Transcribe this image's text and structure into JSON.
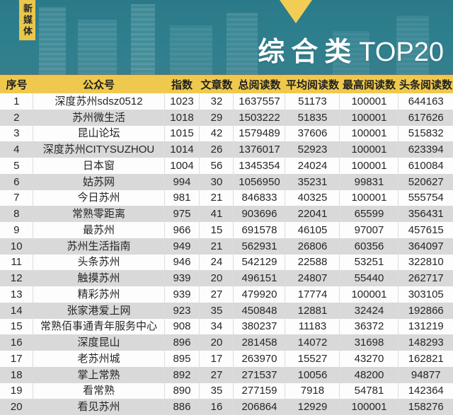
{
  "hero": {
    "badge": "新媒体",
    "title_cn": "综合类",
    "title_suffix": "TOP20"
  },
  "colors": {
    "teal": "#2e7f8e",
    "yellow": "#efc94d",
    "ribbon_yellow": "#e9c74b",
    "row_gray": "#d9d9d9",
    "row_white": "#fdfdfd",
    "text_dark": "#262626",
    "title_white": "#ffffff"
  },
  "chart_data": {
    "type": "table",
    "title": "综合类 TOP20",
    "badge": "新媒体",
    "columns": [
      "序号",
      "公众号",
      "指数",
      "文章数",
      "总阅读数",
      "平均阅读数",
      "最高阅读数",
      "头条阅读数"
    ],
    "rows": [
      [
        1,
        "深度苏州sdsz0512",
        1023,
        32,
        1637557,
        51173,
        100001,
        644163
      ],
      [
        2,
        "苏州微生活",
        1018,
        29,
        1503222,
        51835,
        100001,
        617626
      ],
      [
        3,
        "昆山论坛",
        1015,
        42,
        1579489,
        37606,
        100001,
        515832
      ],
      [
        4,
        "深度苏州CITYSUZHOU",
        1014,
        26,
        1376017,
        52923,
        100001,
        623394
      ],
      [
        5,
        "日本窗",
        1004,
        56,
        1345354,
        24024,
        100001,
        610084
      ],
      [
        6,
        "姑苏网",
        994,
        30,
        1056950,
        35231,
        99831,
        520627
      ],
      [
        7,
        "今日苏州",
        981,
        21,
        846833,
        40325,
        100001,
        555754
      ],
      [
        8,
        "常熟零距离",
        975,
        41,
        903696,
        22041,
        65599,
        356431
      ],
      [
        9,
        "最苏州",
        966,
        15,
        691578,
        46105,
        97007,
        457615
      ],
      [
        10,
        "苏州生活指南",
        949,
        21,
        562931,
        26806,
        60356,
        364097
      ],
      [
        11,
        "头条苏州",
        946,
        24,
        542129,
        22588,
        53251,
        322810
      ],
      [
        12,
        "触摸苏州",
        939,
        20,
        496151,
        24807,
        55440,
        262717
      ],
      [
        13,
        "精彩苏州",
        939,
        27,
        479920,
        17774,
        100001,
        303105
      ],
      [
        14,
        "张家港爱上网",
        923,
        35,
        450848,
        12881,
        32424,
        192866
      ],
      [
        15,
        "常熟佰事通青年服务中心",
        908,
        34,
        380237,
        11183,
        36372,
        131219
      ],
      [
        16,
        "深度昆山",
        896,
        20,
        281458,
        14072,
        31698,
        148293
      ],
      [
        17,
        "老苏州城",
        895,
        17,
        263970,
        15527,
        43270,
        162821
      ],
      [
        18,
        "掌上常熟",
        892,
        27,
        271537,
        10056,
        48200,
        94877
      ],
      [
        19,
        "看常熟",
        890,
        35,
        277159,
        7918,
        54781,
        142364
      ],
      [
        20,
        "看见苏州",
        886,
        16,
        206864,
        12929,
        100001,
        158276
      ]
    ]
  }
}
